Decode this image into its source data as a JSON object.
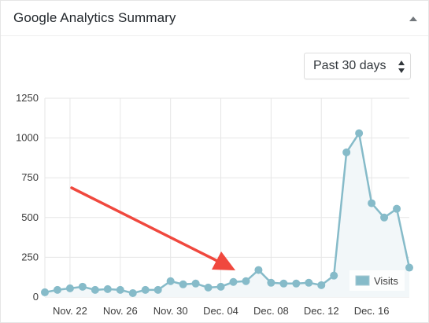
{
  "widget": {
    "title": "Google Analytics Summary",
    "collapse_icon": "triangle-up-icon"
  },
  "range_select": {
    "selected": "Past 30 days",
    "icon": "updown-arrows-icon"
  },
  "annotation": {
    "icon": "red-arrow-icon",
    "color": "#f0483e"
  },
  "chart_data": {
    "type": "area",
    "title": "",
    "xlabel": "",
    "ylabel": "",
    "ylim": [
      0,
      1250
    ],
    "yticks": [
      0,
      250,
      500,
      750,
      1000,
      1250
    ],
    "x_tick_labels": [
      "Nov. 22",
      "Nov. 26",
      "Nov. 30",
      "Dec. 04",
      "Dec. 08",
      "Dec. 12",
      "Dec. 16"
    ],
    "x_tick_index": [
      2,
      6,
      10,
      14,
      18,
      22,
      26
    ],
    "grid": true,
    "legend_position": "bottom-right",
    "series": [
      {
        "name": "Visits",
        "color": "#86bbc9",
        "fill": "#f2f7f9",
        "values": [
          30,
          45,
          55,
          65,
          45,
          50,
          45,
          25,
          45,
          45,
          100,
          80,
          85,
          60,
          65,
          95,
          100,
          170,
          90,
          85,
          85,
          90,
          75,
          135,
          910,
          1030,
          590,
          500,
          555,
          185
        ]
      }
    ]
  }
}
